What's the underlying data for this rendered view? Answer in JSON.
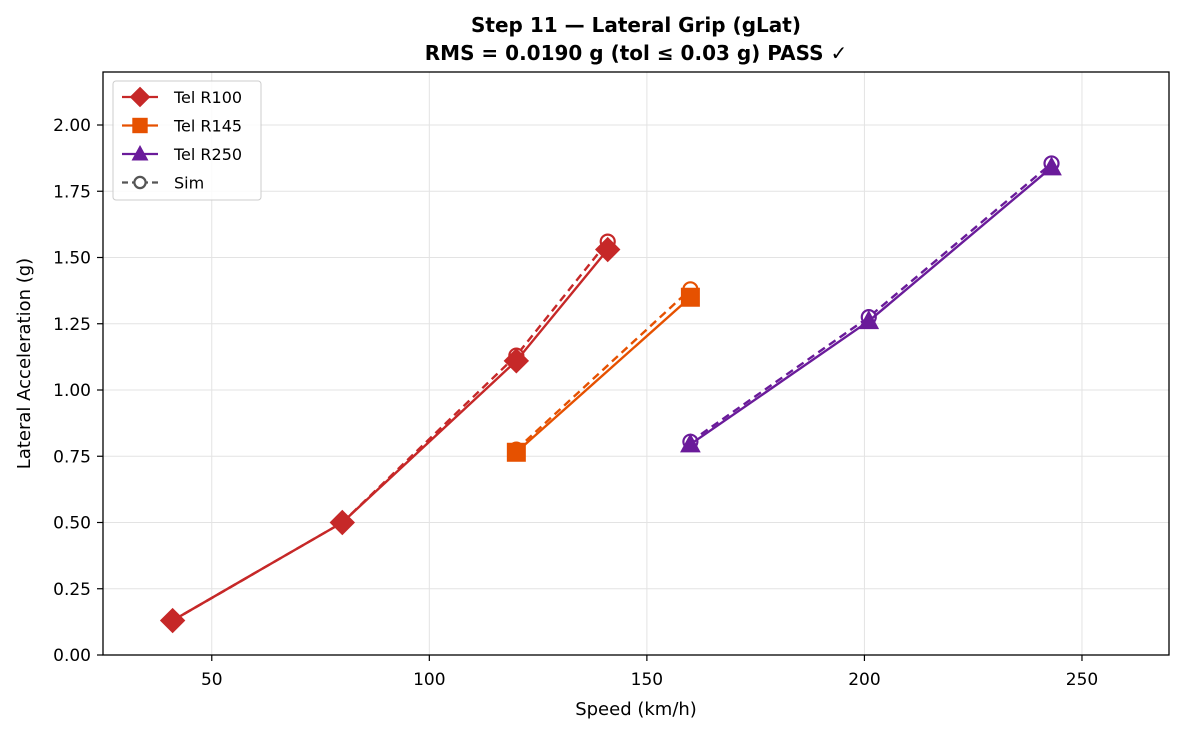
{
  "chart_data": {
    "type": "line",
    "title": "Step 11 — Lateral Grip (gLat)",
    "subtitle": "RMS = 0.0190 g  (tol ≤ 0.03 g)  PASS ✓",
    "xlabel": "Speed (km/h)",
    "ylabel": "Lateral Acceleration (g)",
    "xlim": [
      25,
      270
    ],
    "ylim": [
      0,
      2.2
    ],
    "xticks": [
      50,
      100,
      150,
      200,
      250
    ],
    "xtick_labels": [
      "50",
      "100",
      "150",
      "200",
      "250"
    ],
    "yticks": [
      0,
      0.25,
      0.5,
      0.75,
      1.0,
      1.25,
      1.5,
      1.75,
      2.0
    ],
    "ytick_labels": [
      "0.00",
      "0.25",
      "0.50",
      "0.75",
      "1.00",
      "1.25",
      "1.50",
      "1.75",
      "2.00"
    ],
    "grid": true,
    "legend_position": "top-left",
    "series": [
      {
        "name": "Tel R100",
        "kind": "telemetry",
        "marker": "diamond-icon",
        "color": "#c62828",
        "x": [
          41,
          80,
          120,
          141
        ],
        "y": [
          0.13,
          0.5,
          1.11,
          1.53
        ]
      },
      {
        "name": "",
        "kind": "sim",
        "marker": "circle-open-icon",
        "color": "#c62828",
        "x": [
          41,
          80,
          120,
          141
        ],
        "y": [
          0.13,
          0.5,
          1.13,
          1.56
        ]
      },
      {
        "name": "Tel R145",
        "kind": "telemetry",
        "marker": "square-icon",
        "color": "#e65100",
        "x": [
          120,
          160
        ],
        "y": [
          0.765,
          1.35
        ]
      },
      {
        "name": "",
        "kind": "sim",
        "marker": "circle-open-icon",
        "color": "#e65100",
        "x": [
          120,
          160
        ],
        "y": [
          0.775,
          1.38
        ]
      },
      {
        "name": "Tel R250",
        "kind": "telemetry",
        "marker": "triangle-icon",
        "color": "#6a1b9a",
        "x": [
          160,
          201,
          243
        ],
        "y": [
          0.795,
          1.26,
          1.84
        ]
      },
      {
        "name": "",
        "kind": "sim",
        "marker": "circle-open-icon",
        "color": "#6a1b9a",
        "x": [
          160,
          201,
          243
        ],
        "y": [
          0.805,
          1.275,
          1.855
        ]
      }
    ],
    "legend": [
      {
        "label": "Tel R100",
        "marker": "diamond-icon",
        "color": "#c62828",
        "dash": false
      },
      {
        "label": "Tel R145",
        "marker": "square-icon",
        "color": "#e65100",
        "dash": false
      },
      {
        "label": "Tel R250",
        "marker": "triangle-icon",
        "color": "#6a1b9a",
        "dash": false
      },
      {
        "label": "Sim",
        "marker": "circle-open-icon",
        "color": "#555555",
        "dash": true
      }
    ]
  }
}
